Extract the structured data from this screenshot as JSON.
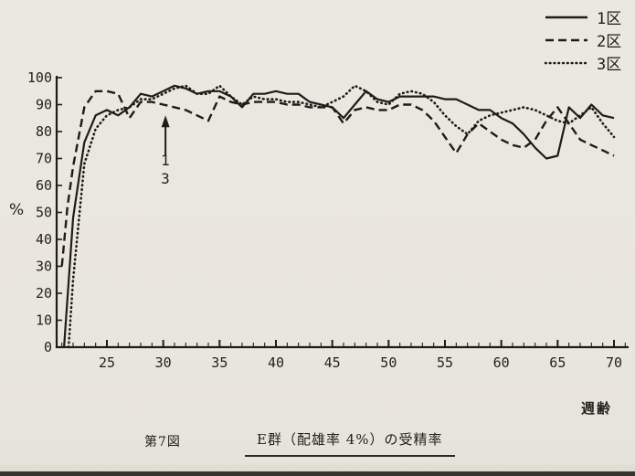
{
  "page": {
    "bg": "#e9e6de",
    "ink": "#1d1c18"
  },
  "legend": {
    "items": [
      {
        "label": "1区",
        "style": "solid"
      },
      {
        "label": "2区",
        "style": "dashed"
      },
      {
        "label": "3区",
        "style": "dotted"
      }
    ]
  },
  "axis_labels": {
    "y_unit": "%",
    "x_unit": "週齢"
  },
  "annotation": {
    "week": 30.2,
    "from_pct": 71,
    "to_pct": 86,
    "labels": [
      "1",
      "3"
    ]
  },
  "caption": {
    "figure_no": "第7図",
    "title": "E群（配雄率 4%）の受精率"
  },
  "chart_data": {
    "type": "line",
    "title": "E群（配雄率 4%）の受精率",
    "xlabel": "週齢",
    "ylabel": "%",
    "xlim": [
      21,
      71.3
    ],
    "ylim": [
      0,
      100
    ],
    "yticks": [
      0,
      10,
      20,
      30,
      40,
      50,
      60,
      70,
      80,
      90,
      100
    ],
    "xticks_major": [
      25,
      30,
      35,
      40,
      45,
      50,
      55,
      60,
      65,
      70
    ],
    "xticks_minor_step": 1,
    "grid": false,
    "legend_position": "top-right",
    "series": [
      {
        "name": "1区",
        "style": "solid",
        "points": [
          [
            21.2,
            0
          ],
          [
            22,
            48
          ],
          [
            23,
            76
          ],
          [
            24,
            86
          ],
          [
            25,
            88
          ],
          [
            26,
            86
          ],
          [
            27,
            89
          ],
          [
            28,
            94
          ],
          [
            29,
            93
          ],
          [
            30,
            95
          ],
          [
            31,
            97
          ],
          [
            32,
            96
          ],
          [
            33,
            94
          ],
          [
            34,
            95
          ],
          [
            35,
            95
          ],
          [
            36,
            93
          ],
          [
            37,
            89
          ],
          [
            38,
            94
          ],
          [
            39,
            94
          ],
          [
            40,
            95
          ],
          [
            41,
            94
          ],
          [
            42,
            94
          ],
          [
            43,
            91
          ],
          [
            44,
            90
          ],
          [
            45,
            89
          ],
          [
            46,
            85
          ],
          [
            47,
            90
          ],
          [
            48,
            95
          ],
          [
            49,
            92
          ],
          [
            50,
            91
          ],
          [
            51,
            93
          ],
          [
            52,
            93
          ],
          [
            53,
            93
          ],
          [
            54,
            93
          ],
          [
            55,
            92
          ],
          [
            56,
            92
          ],
          [
            57,
            90
          ],
          [
            58,
            88
          ],
          [
            59,
            88
          ],
          [
            60,
            85
          ],
          [
            61,
            83
          ],
          [
            62,
            79
          ],
          [
            63,
            74
          ],
          [
            64,
            70
          ],
          [
            65,
            71
          ],
          [
            66,
            89
          ],
          [
            67,
            85
          ],
          [
            68,
            90
          ],
          [
            69,
            86
          ],
          [
            70,
            85
          ]
        ]
      },
      {
        "name": "2区",
        "style": "dashed",
        "points": [
          [
            21,
            30
          ],
          [
            21.5,
            52
          ],
          [
            22,
            67
          ],
          [
            23,
            89
          ],
          [
            24,
            95
          ],
          [
            25,
            95
          ],
          [
            26,
            94
          ],
          [
            27,
            85
          ],
          [
            28,
            91
          ],
          [
            29,
            91
          ],
          [
            30,
            90
          ],
          [
            31,
            89
          ],
          [
            32,
            88
          ],
          [
            33,
            86
          ],
          [
            34,
            84
          ],
          [
            35,
            93
          ],
          [
            36,
            91
          ],
          [
            37,
            90
          ],
          [
            38,
            91
          ],
          [
            39,
            91
          ],
          [
            40,
            91
          ],
          [
            41,
            90
          ],
          [
            42,
            90
          ],
          [
            43,
            89
          ],
          [
            44,
            89
          ],
          [
            45,
            89
          ],
          [
            46,
            83
          ],
          [
            47,
            88
          ],
          [
            48,
            89
          ],
          [
            49,
            88
          ],
          [
            50,
            88
          ],
          [
            51,
            90
          ],
          [
            52,
            90
          ],
          [
            53,
            88
          ],
          [
            54,
            84
          ],
          [
            55,
            78
          ],
          [
            56,
            72
          ],
          [
            57,
            79
          ],
          [
            58,
            83
          ],
          [
            59,
            80
          ],
          [
            60,
            77
          ],
          [
            61,
            75
          ],
          [
            62,
            74
          ],
          [
            63,
            77
          ],
          [
            64,
            84
          ],
          [
            65,
            89
          ],
          [
            66,
            83
          ],
          [
            67,
            77
          ],
          [
            68,
            75
          ],
          [
            69,
            73
          ],
          [
            70,
            71
          ]
        ]
      },
      {
        "name": "3区",
        "style": "dotted",
        "points": [
          [
            21.6,
            0
          ],
          [
            22,
            25
          ],
          [
            23,
            68
          ],
          [
            24,
            81
          ],
          [
            25,
            86
          ],
          [
            26,
            88
          ],
          [
            27,
            89
          ],
          [
            28,
            92
          ],
          [
            29,
            92
          ],
          [
            30,
            94
          ],
          [
            31,
            96
          ],
          [
            32,
            97
          ],
          [
            33,
            94
          ],
          [
            34,
            94
          ],
          [
            35,
            97
          ],
          [
            36,
            93
          ],
          [
            37,
            90
          ],
          [
            38,
            93
          ],
          [
            39,
            92
          ],
          [
            40,
            92
          ],
          [
            41,
            91
          ],
          [
            42,
            91
          ],
          [
            43,
            90
          ],
          [
            44,
            89
          ],
          [
            45,
            91
          ],
          [
            46,
            93
          ],
          [
            47,
            97
          ],
          [
            48,
            95
          ],
          [
            49,
            91
          ],
          [
            50,
            90
          ],
          [
            51,
            94
          ],
          [
            52,
            95
          ],
          [
            53,
            94
          ],
          [
            54,
            91
          ],
          [
            55,
            86
          ],
          [
            56,
            82
          ],
          [
            57,
            79
          ],
          [
            58,
            84
          ],
          [
            59,
            86
          ],
          [
            60,
            87
          ],
          [
            61,
            88
          ],
          [
            62,
            89
          ],
          [
            63,
            88
          ],
          [
            64,
            86
          ],
          [
            65,
            84
          ],
          [
            66,
            83
          ],
          [
            67,
            86
          ],
          [
            68,
            89
          ],
          [
            69,
            83
          ],
          [
            70,
            78
          ]
        ]
      }
    ]
  }
}
